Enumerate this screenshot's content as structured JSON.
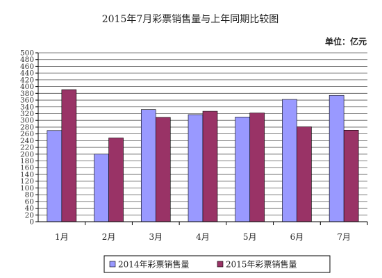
{
  "chart_data": {
    "type": "bar",
    "title": "2015年7月彩票销售量与上年同期比较图",
    "unit_label": "单位：亿元",
    "categories": [
      "1月",
      "2月",
      "3月",
      "4月",
      "5月",
      "6月",
      "7月"
    ],
    "series": [
      {
        "name": "2014年彩票销售量",
        "values": [
          270,
          200,
          332,
          317,
          310,
          362,
          374
        ],
        "color": "#9999ff"
      },
      {
        "name": "2015年彩票销售量",
        "values": [
          391,
          248,
          309,
          327,
          322,
          281,
          271
        ],
        "color": "#993366"
      }
    ],
    "ylim": [
      0,
      500
    ],
    "ytick_step": 20,
    "grid": true,
    "legend_position": "bottom"
  }
}
